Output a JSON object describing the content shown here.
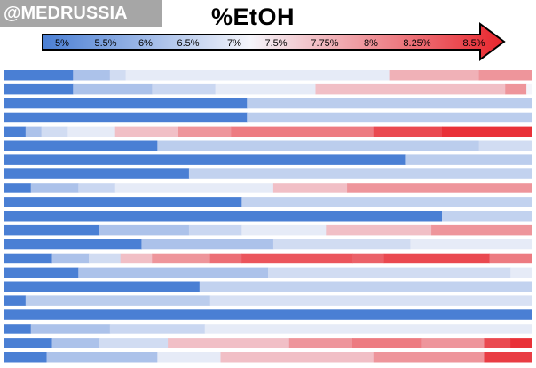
{
  "watermark": "@MEDRUSSIA",
  "chart_data": {
    "type": "heatmap",
    "title": "%EtOH",
    "colorbar": {
      "ticks": [
        "5%",
        "5.5%",
        "6%",
        "6.5%",
        "7%",
        "7.5%",
        "7.75%",
        "8%",
        "8.25%",
        "8.5%"
      ],
      "low_color": "#4a7fd4",
      "mid_color": "#f4f4fa",
      "high_color": "#e8252c"
    },
    "rows": [
      [
        [
          0.0,
          0.13,
          5.0
        ],
        [
          0.13,
          0.2,
          6.0
        ],
        [
          0.2,
          0.23,
          6.5
        ],
        [
          0.23,
          0.73,
          6.8
        ],
        [
          0.73,
          0.9,
          7.4
        ],
        [
          0.9,
          1.0,
          7.6
        ]
      ],
      [
        [
          0.0,
          0.13,
          5.0
        ],
        [
          0.13,
          0.28,
          6.0
        ],
        [
          0.28,
          0.4,
          6.4
        ],
        [
          0.4,
          0.59,
          6.8
        ],
        [
          0.59,
          0.95,
          7.3
        ],
        [
          0.95,
          0.99,
          7.6
        ],
        [
          0.99,
          1.0,
          7.0
        ]
      ],
      [
        [
          0.0,
          0.46,
          5.0
        ],
        [
          0.46,
          1.0,
          6.2
        ]
      ],
      [
        [
          0.0,
          0.46,
          5.0
        ],
        [
          0.46,
          1.0,
          6.2
        ]
      ],
      [
        [
          0.0,
          0.04,
          5.0
        ],
        [
          0.04,
          0.07,
          6.0
        ],
        [
          0.07,
          0.12,
          6.5
        ],
        [
          0.12,
          0.21,
          6.8
        ],
        [
          0.21,
          0.33,
          7.3
        ],
        [
          0.33,
          0.43,
          7.6
        ],
        [
          0.43,
          0.7,
          7.8
        ],
        [
          0.7,
          0.83,
          8.2
        ],
        [
          0.83,
          1.0,
          8.4
        ]
      ],
      [
        [
          0.0,
          0.29,
          5.0
        ],
        [
          0.29,
          0.9,
          6.2
        ],
        [
          0.9,
          1.0,
          6.5
        ]
      ],
      [
        [
          0.0,
          0.76,
          5.0
        ],
        [
          0.76,
          1.0,
          6.2
        ]
      ],
      [
        [
          0.0,
          0.35,
          5.0
        ],
        [
          0.35,
          1.0,
          6.3
        ]
      ],
      [
        [
          0.0,
          0.05,
          5.0
        ],
        [
          0.05,
          0.14,
          6.0
        ],
        [
          0.14,
          0.21,
          6.4
        ],
        [
          0.21,
          0.51,
          6.8
        ],
        [
          0.51,
          0.65,
          7.3
        ],
        [
          0.65,
          1.0,
          7.6
        ]
      ],
      [
        [
          0.0,
          0.45,
          5.0
        ],
        [
          0.45,
          1.0,
          6.3
        ]
      ],
      [
        [
          0.0,
          0.83,
          5.0
        ],
        [
          0.83,
          1.0,
          6.3
        ]
      ],
      [
        [
          0.0,
          0.18,
          5.0
        ],
        [
          0.18,
          0.35,
          6.0
        ],
        [
          0.35,
          0.45,
          6.4
        ],
        [
          0.45,
          0.61,
          6.8
        ],
        [
          0.61,
          0.81,
          7.3
        ],
        [
          0.81,
          1.0,
          7.6
        ]
      ],
      [
        [
          0.0,
          0.26,
          5.0
        ],
        [
          0.26,
          0.51,
          6.0
        ],
        [
          0.51,
          0.77,
          6.5
        ],
        [
          0.77,
          1.0,
          6.8
        ]
      ],
      [
        [
          0.0,
          0.09,
          5.0
        ],
        [
          0.09,
          0.16,
          6.0
        ],
        [
          0.16,
          0.22,
          6.5
        ],
        [
          0.22,
          0.28,
          7.3
        ],
        [
          0.28,
          0.39,
          7.6
        ],
        [
          0.39,
          0.45,
          7.9
        ],
        [
          0.45,
          0.66,
          8.1
        ],
        [
          0.66,
          0.72,
          8.0
        ],
        [
          0.72,
          0.92,
          8.2
        ],
        [
          0.92,
          1.0,
          7.8
        ]
      ],
      [
        [
          0.0,
          0.14,
          5.0
        ],
        [
          0.14,
          0.5,
          6.0
        ],
        [
          0.5,
          0.96,
          6.5
        ],
        [
          0.96,
          1.0,
          6.8
        ]
      ],
      [
        [
          0.0,
          0.37,
          5.0
        ],
        [
          0.37,
          1.0,
          6.3
        ]
      ],
      [
        [
          0.0,
          0.04,
          5.0
        ],
        [
          0.04,
          0.39,
          6.2
        ],
        [
          0.39,
          1.0,
          6.6
        ]
      ],
      [
        [
          0.0,
          1.0,
          5.0
        ]
      ],
      [
        [
          0.0,
          0.05,
          5.0
        ],
        [
          0.05,
          0.2,
          6.0
        ],
        [
          0.2,
          0.38,
          6.4
        ],
        [
          0.38,
          1.0,
          6.8
        ]
      ],
      [
        [
          0.0,
          0.09,
          5.0
        ],
        [
          0.09,
          0.18,
          6.0
        ],
        [
          0.18,
          0.31,
          6.5
        ],
        [
          0.31,
          0.54,
          7.3
        ],
        [
          0.54,
          0.66,
          7.6
        ],
        [
          0.66,
          0.79,
          7.8
        ],
        [
          0.79,
          0.91,
          7.6
        ],
        [
          0.91,
          0.96,
          8.2
        ],
        [
          0.96,
          1.0,
          8.4
        ]
      ],
      [
        [
          0.0,
          0.08,
          5.0
        ],
        [
          0.08,
          0.29,
          6.0
        ],
        [
          0.29,
          0.41,
          6.8
        ],
        [
          0.41,
          0.7,
          7.3
        ],
        [
          0.7,
          0.91,
          7.6
        ],
        [
          0.91,
          1.0,
          8.3
        ]
      ]
    ]
  }
}
